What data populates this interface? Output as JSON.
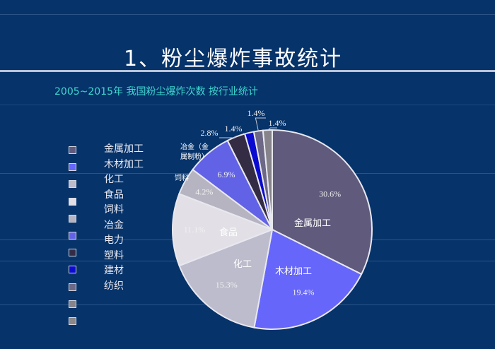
{
  "title": "1、粉尘爆炸事故统计",
  "chart_data": {
    "type": "pie",
    "title": "2005~2015年  我国粉尘爆炸次数 按行业统计",
    "legend_position": "left",
    "slices": [
      {
        "label": "金属加工",
        "value": 30.6,
        "pct_label": "30.6%",
        "inner_label": "金属加工",
        "color": "#605a7c"
      },
      {
        "label": "木材加工",
        "value": 19.4,
        "pct_label": "19.4%",
        "inner_label": "木材加工",
        "color": "#6666fa"
      },
      {
        "label": "化工",
        "value": 15.3,
        "pct_label": "15.3%",
        "inner_label": "化工",
        "color": "#bcbccc"
      },
      {
        "label": "食品",
        "value": 11.1,
        "pct_label": "11.1%",
        "inner_label": "食品",
        "color": "#e2e0e6"
      },
      {
        "label": "饲料",
        "value": 4.2,
        "pct_label": "4.2%",
        "inner_label": "饲料",
        "color": "#b6b4c0"
      },
      {
        "label": "冶金",
        "value": 6.9,
        "pct_label": "6.9%",
        "inner_label": "冶金（金属制粉）",
        "color": "#6262e6"
      },
      {
        "label": "电力",
        "value": 2.8,
        "pct_label": "2.8%",
        "inner_label": "",
        "color": "#342c44"
      },
      {
        "label": "塑料",
        "value": 1.4,
        "pct_label": "1.4%",
        "inner_label": "",
        "color": "#0a0ad0"
      },
      {
        "label": "建材",
        "value": 1.4,
        "pct_label": "1.4%",
        "inner_label": "",
        "color": "#6c6886"
      },
      {
        "label": "纺织",
        "value": 1.4,
        "pct_label": "1.4%",
        "inner_label": "",
        "color": "#86848a"
      }
    ],
    "legend_extra_swatch_color": "#8a8888"
  }
}
